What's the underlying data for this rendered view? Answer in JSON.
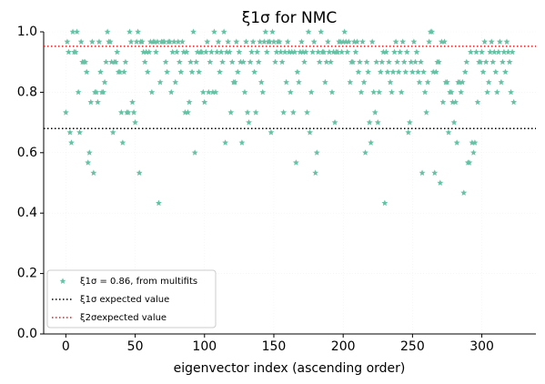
{
  "chart_data": {
    "type": "scatter",
    "title": "ξ1σ for NMC",
    "xlabel": "eigenvector index (ascending order)",
    "xlim": [
      -16,
      339
    ],
    "ylim": [
      0,
      1
    ],
    "xticks": [
      0,
      50,
      100,
      150,
      200,
      250,
      300
    ],
    "yticks": [
      {
        "value": 0,
        "label": "0.0"
      },
      0.2,
      0.4,
      0.6,
      0.8,
      {
        "value": 1,
        "label": "1.0"
      }
    ],
    "grid": true,
    "legend": "lower left",
    "series": [
      {
        "name": "ξ1σ = 0.86, from multifits",
        "color": "#66c2a5",
        "marker": "star",
        "x": [
          0,
          1,
          2,
          3,
          4,
          5,
          6,
          7,
          8,
          9,
          10,
          11,
          12,
          13,
          14,
          15,
          16,
          17,
          18,
          19,
          20,
          21,
          22,
          23,
          24,
          25,
          26,
          27,
          28,
          29,
          30,
          31,
          32,
          33,
          34,
          35,
          36,
          37,
          38,
          39,
          40,
          41,
          42,
          43,
          44,
          45,
          46,
          47,
          48,
          49,
          50,
          51,
          52,
          53,
          54,
          55,
          56,
          57,
          58,
          59,
          60,
          61,
          62,
          63,
          64,
          65,
          66,
          67,
          68,
          69,
          70,
          71,
          72,
          73,
          74,
          75,
          76,
          77,
          78,
          79,
          80,
          81,
          82,
          83,
          84,
          85,
          86,
          87,
          88,
          89,
          90,
          91,
          92,
          93,
          94,
          95,
          96,
          97,
          98,
          99,
          100,
          101,
          102,
          103,
          104,
          105,
          106,
          107,
          108,
          109,
          110,
          111,
          112,
          113,
          114,
          115,
          116,
          117,
          118,
          119,
          120,
          121,
          122,
          123,
          124,
          125,
          126,
          127,
          128,
          129,
          130,
          131,
          132,
          133,
          134,
          135,
          136,
          137,
          138,
          139,
          140,
          141,
          142,
          143,
          144,
          145,
          146,
          147,
          148,
          149,
          150,
          151,
          152,
          153,
          154,
          155,
          156,
          157,
          158,
          159,
          160,
          161,
          162,
          163,
          164,
          165,
          166,
          167,
          168,
          169,
          170,
          171,
          172,
          173,
          174,
          175,
          176,
          177,
          178,
          179,
          180,
          181,
          182,
          183,
          184,
          185,
          186,
          187,
          188,
          189,
          190,
          191,
          192,
          193,
          194,
          195,
          196,
          197,
          198,
          199,
          200,
          201,
          202,
          203,
          204,
          205,
          206,
          207,
          208,
          209,
          210,
          211,
          212,
          213,
          214,
          215,
          216,
          217,
          218,
          219,
          220,
          221,
          222,
          223,
          224,
          225,
          226,
          227,
          228,
          229,
          230,
          231,
          232,
          233,
          234,
          235,
          236,
          237,
          238,
          239,
          240,
          241,
          242,
          243,
          244,
          245,
          246,
          247,
          248,
          249,
          250,
          251,
          252,
          253,
          254,
          255,
          256,
          257,
          258,
          259,
          260,
          261,
          262,
          263,
          264,
          265,
          266,
          267,
          268,
          269,
          270,
          271,
          272,
          273,
          274,
          275,
          276,
          277,
          278,
          279,
          280,
          281,
          282,
          283,
          284,
          285,
          286,
          287,
          288,
          289,
          290,
          291,
          292,
          293,
          294,
          295,
          296,
          297,
          298,
          299,
          300,
          301,
          302,
          303,
          304,
          305,
          306,
          307,
          308,
          309,
          310,
          311,
          312,
          313,
          314,
          315,
          316,
          317,
          318,
          319,
          320,
          321,
          322,
          323
        ],
        "values": [
          0.733,
          0.967,
          0.933,
          0.667,
          0.633,
          1,
          0.933,
          0.933,
          1,
          0.8,
          0.667,
          0.967,
          0.9,
          0.9,
          0.9,
          0.867,
          0.567,
          0.6,
          0.767,
          0.967,
          0.533,
          0.8,
          0.8,
          0.767,
          0.967,
          0.867,
          0.8,
          0.8,
          0.833,
          0.9,
          1,
          0.967,
          0.967,
          0.9,
          0.667,
          0.9,
          0.9,
          0.933,
          0.867,
          0.867,
          0.733,
          0.633,
          0.867,
          0.9,
          0.733,
          0.733,
          1,
          0.967,
          0.767,
          0.733,
          0.7,
          0.967,
          1,
          0.533,
          0.967,
          0.967,
          0.933,
          0.9,
          0.933,
          0.867,
          0.933,
          0.967,
          0.8,
          0.967,
          0.967,
          0.933,
          0.967,
          0.433,
          0.833,
          0.967,
          0.967,
          0.967,
          0.9,
          0.867,
          0.967,
          0.967,
          0.8,
          0.933,
          0.967,
          0.833,
          0.933,
          0.967,
          0.9,
          0.867,
          0.967,
          0.933,
          0.733,
          0.933,
          0.733,
          0.767,
          0.9,
          0.867,
          1,
          0.6,
          0.9,
          0.933,
          0.867,
          0.933,
          0.933,
          0.8,
          0.767,
          0.933,
          0.967,
          0.8,
          0.9,
          0.933,
          0.8,
          1,
          0.8,
          0.933,
          0.967,
          0.867,
          0.933,
          0.9,
          1,
          0.633,
          0.933,
          0.967,
          0.933,
          0.733,
          0.9,
          0.833,
          0.833,
          0.967,
          0.867,
          0.933,
          0.9,
          0.633,
          0.9,
          0.8,
          0.967,
          0.733,
          0.7,
          0.9,
          0.933,
          0.967,
          0.867,
          0.733,
          0.933,
          0.9,
          0.967,
          0.833,
          0.8,
          0.967,
          1,
          0.933,
          0.967,
          0.967,
          0.667,
          1,
          0.967,
          0.9,
          0.933,
          0.967,
          0.967,
          0.933,
          0.9,
          0.733,
          0.933,
          0.833,
          0.967,
          0.933,
          0.8,
          0.933,
          0.733,
          0.933,
          0.567,
          0.867,
          0.833,
          0.933,
          0.967,
          0.933,
          0.9,
          0.933,
          0.733,
          1,
          0.667,
          0.8,
          0.933,
          0.967,
          0.533,
          0.6,
          0.933,
          0.9,
          1,
          0.933,
          0.933,
          0.833,
          0.9,
          0.967,
          0.933,
          0.9,
          0.8,
          0.933,
          0.7,
          0.933,
          0.933,
          0.967,
          0.967,
          0.933,
          0.967,
          1,
          0.967,
          0.933,
          0.967,
          0.833,
          0.9,
          0.9,
          0.967,
          0.933,
          0.967,
          0.867,
          0.9,
          0.8,
          0.967,
          0.833,
          0.6,
          0.9,
          0.867,
          0.7,
          0.633,
          0.967,
          0.8,
          0.733,
          0.9,
          0.7,
          0.8,
          0.867,
          0.9,
          0.933,
          0.433,
          0.933,
          0.867,
          0.9,
          0.833,
          0.8,
          0.867,
          0.933,
          0.967,
          0.9,
          0.867,
          0.933,
          0.8,
          0.967,
          0.9,
          0.867,
          0.933,
          0.667,
          0.7,
          0.9,
          0.867,
          0.967,
          0.9,
          0.933,
          0.867,
          0.833,
          0.9,
          0.533,
          0.867,
          0.8,
          0.733,
          0.833,
          0.967,
          1,
          1,
          0.867,
          0.533,
          0.867,
          0.9,
          0.9,
          0.5,
          0.967,
          0.767,
          0.967,
          0.833,
          0.833,
          0.667,
          0.8,
          0.8,
          0.767,
          0.7,
          0.767,
          0.633,
          0.833,
          0.833,
          0.8,
          0.833,
          0.467,
          0.867,
          0.9,
          0.567,
          0.567,
          0.933,
          0.633,
          0.6,
          0.633,
          0.933,
          0.767,
          0.9,
          0.9,
          0.933,
          0.867,
          0.967,
          0.9,
          0.8,
          0.833,
          0.933,
          0.967,
          0.9,
          0.933,
          0.867,
          0.8,
          0.933,
          0.967,
          0.833,
          0.9,
          0.933,
          0.867,
          0.967,
          0.933,
          0.9,
          0.8,
          0.933,
          0.767
        ]
      }
    ],
    "hlines": [
      {
        "name": "ξ1σ expected value",
        "value": 0.68,
        "color": "#000000"
      },
      {
        "name": "ξ2σexpected value",
        "value": 0.952,
        "color": "#e41a1c"
      }
    ]
  }
}
